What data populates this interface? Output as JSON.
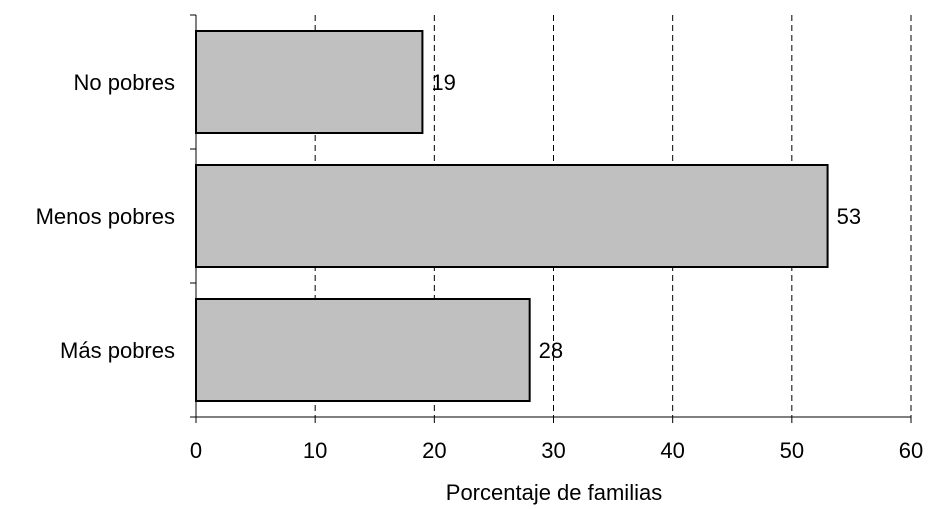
{
  "chart_data": {
    "type": "bar",
    "orientation": "horizontal",
    "categories": [
      "No pobres",
      "Menos pobres",
      "Más pobres"
    ],
    "values": [
      19,
      53,
      28
    ],
    "title": "",
    "xlabel": "Porcentaje de familias",
    "ylabel": "",
    "xlim": [
      0,
      60
    ],
    "xticks": [
      "0",
      "10",
      "20",
      "30",
      "40",
      "50",
      "60"
    ],
    "grid": "vertical dashed",
    "legend": "none",
    "data_labels": true,
    "colors": {
      "bar_fill": "#c0c0c0",
      "bar_stroke": "#000000",
      "grid": "#000000",
      "axis": "#000000"
    }
  }
}
